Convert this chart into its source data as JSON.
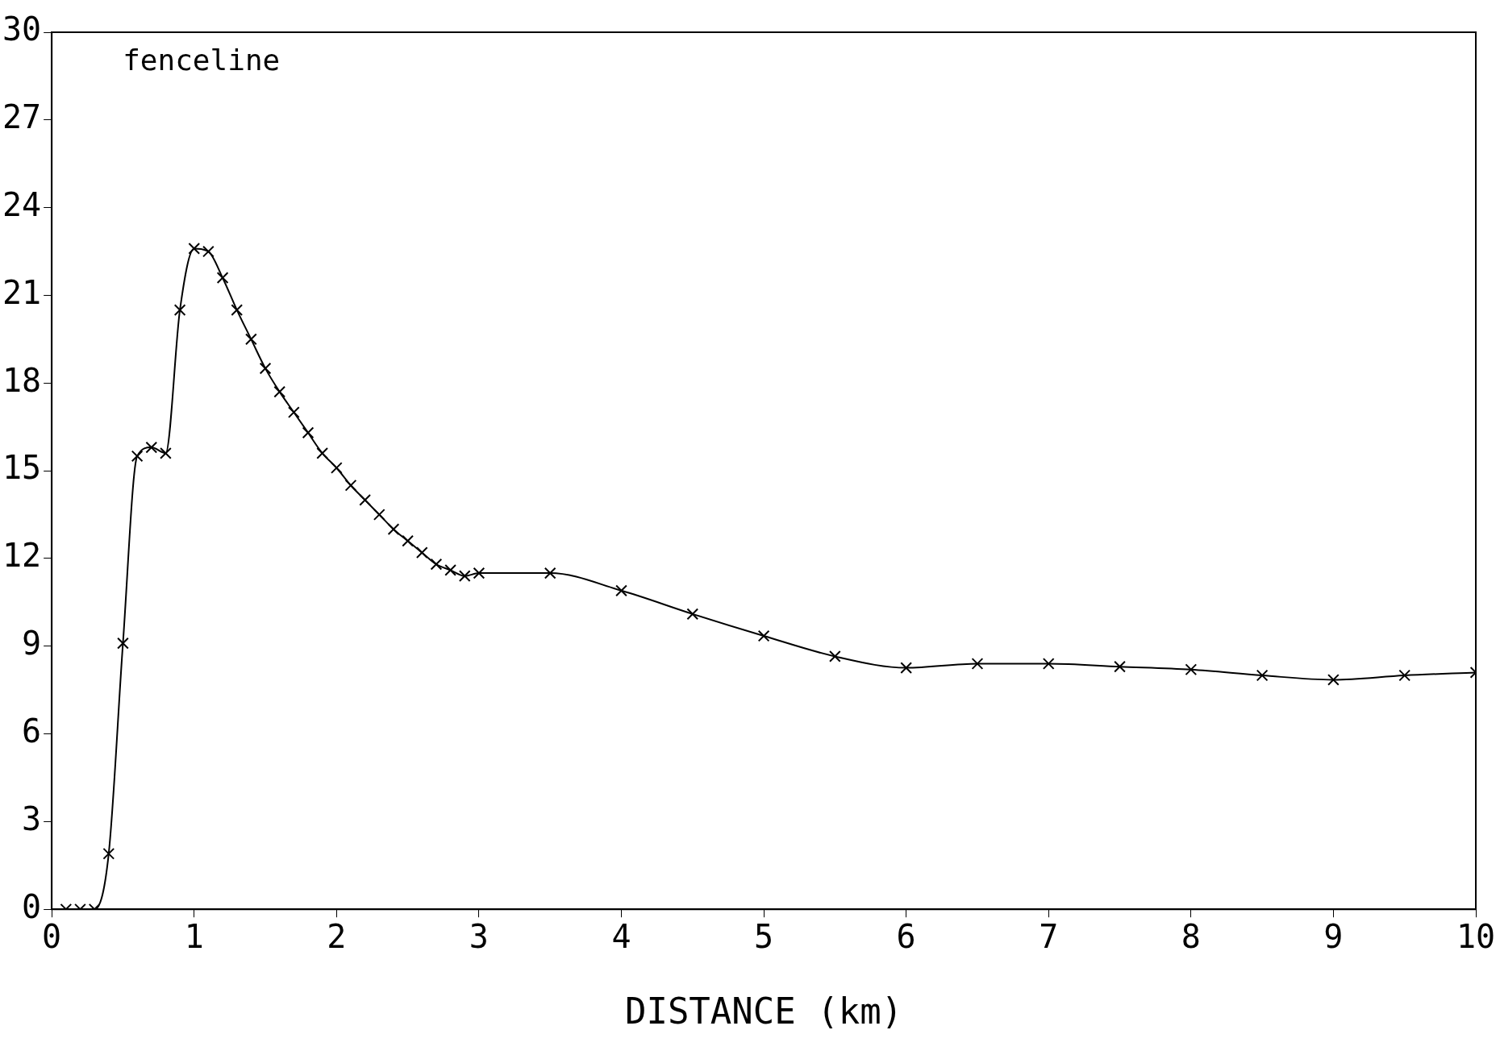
{
  "chart_data": {
    "type": "line",
    "xlabel": "DISTANCE (km)",
    "annotations": [
      "fenceline"
    ],
    "x": [
      0.1,
      0.2,
      0.3,
      0.4,
      0.5,
      0.6,
      0.7,
      0.8,
      0.9,
      1.0,
      1.1,
      1.2,
      1.3,
      1.4,
      1.5,
      1.6,
      1.7,
      1.8,
      1.9,
      2.0,
      2.1,
      2.2,
      2.3,
      2.4,
      2.5,
      2.6,
      2.7,
      2.8,
      2.9,
      3.0,
      3.5,
      4.0,
      4.5,
      5.0,
      5.5,
      6.0,
      6.5,
      7.0,
      7.5,
      8.0,
      8.5,
      9.0,
      9.5,
      10.0
    ],
    "series": [
      {
        "color": "#000000",
        "values": [
          0,
          0,
          0,
          1.9,
          9.1,
          15.5,
          15.8,
          15.6,
          20.5,
          22.6,
          22.5,
          21.6,
          20.5,
          19.5,
          18.5,
          17.7,
          17.0,
          16.3,
          15.6,
          15.1,
          14.5,
          14.0,
          13.5,
          13.0,
          12.6,
          12.2,
          11.8,
          11.6,
          11.4,
          11.5,
          11.5,
          10.9,
          10.1,
          9.35,
          8.65,
          8.26,
          8.4,
          8.4,
          8.3,
          8.2,
          8.0,
          7.85,
          8.0,
          8.1
        ]
      }
    ],
    "xlim": [
      0,
      10
    ],
    "xticks": [
      0,
      1,
      2,
      3,
      4,
      5,
      6,
      7,
      8,
      9,
      10
    ],
    "ylim": [
      0,
      30
    ],
    "yticks": [
      0,
      3,
      6,
      9,
      12,
      15,
      18,
      21,
      24,
      27,
      30
    ],
    "grid": false,
    "legend": false,
    "marker": "cross",
    "line_style": "solid"
  }
}
